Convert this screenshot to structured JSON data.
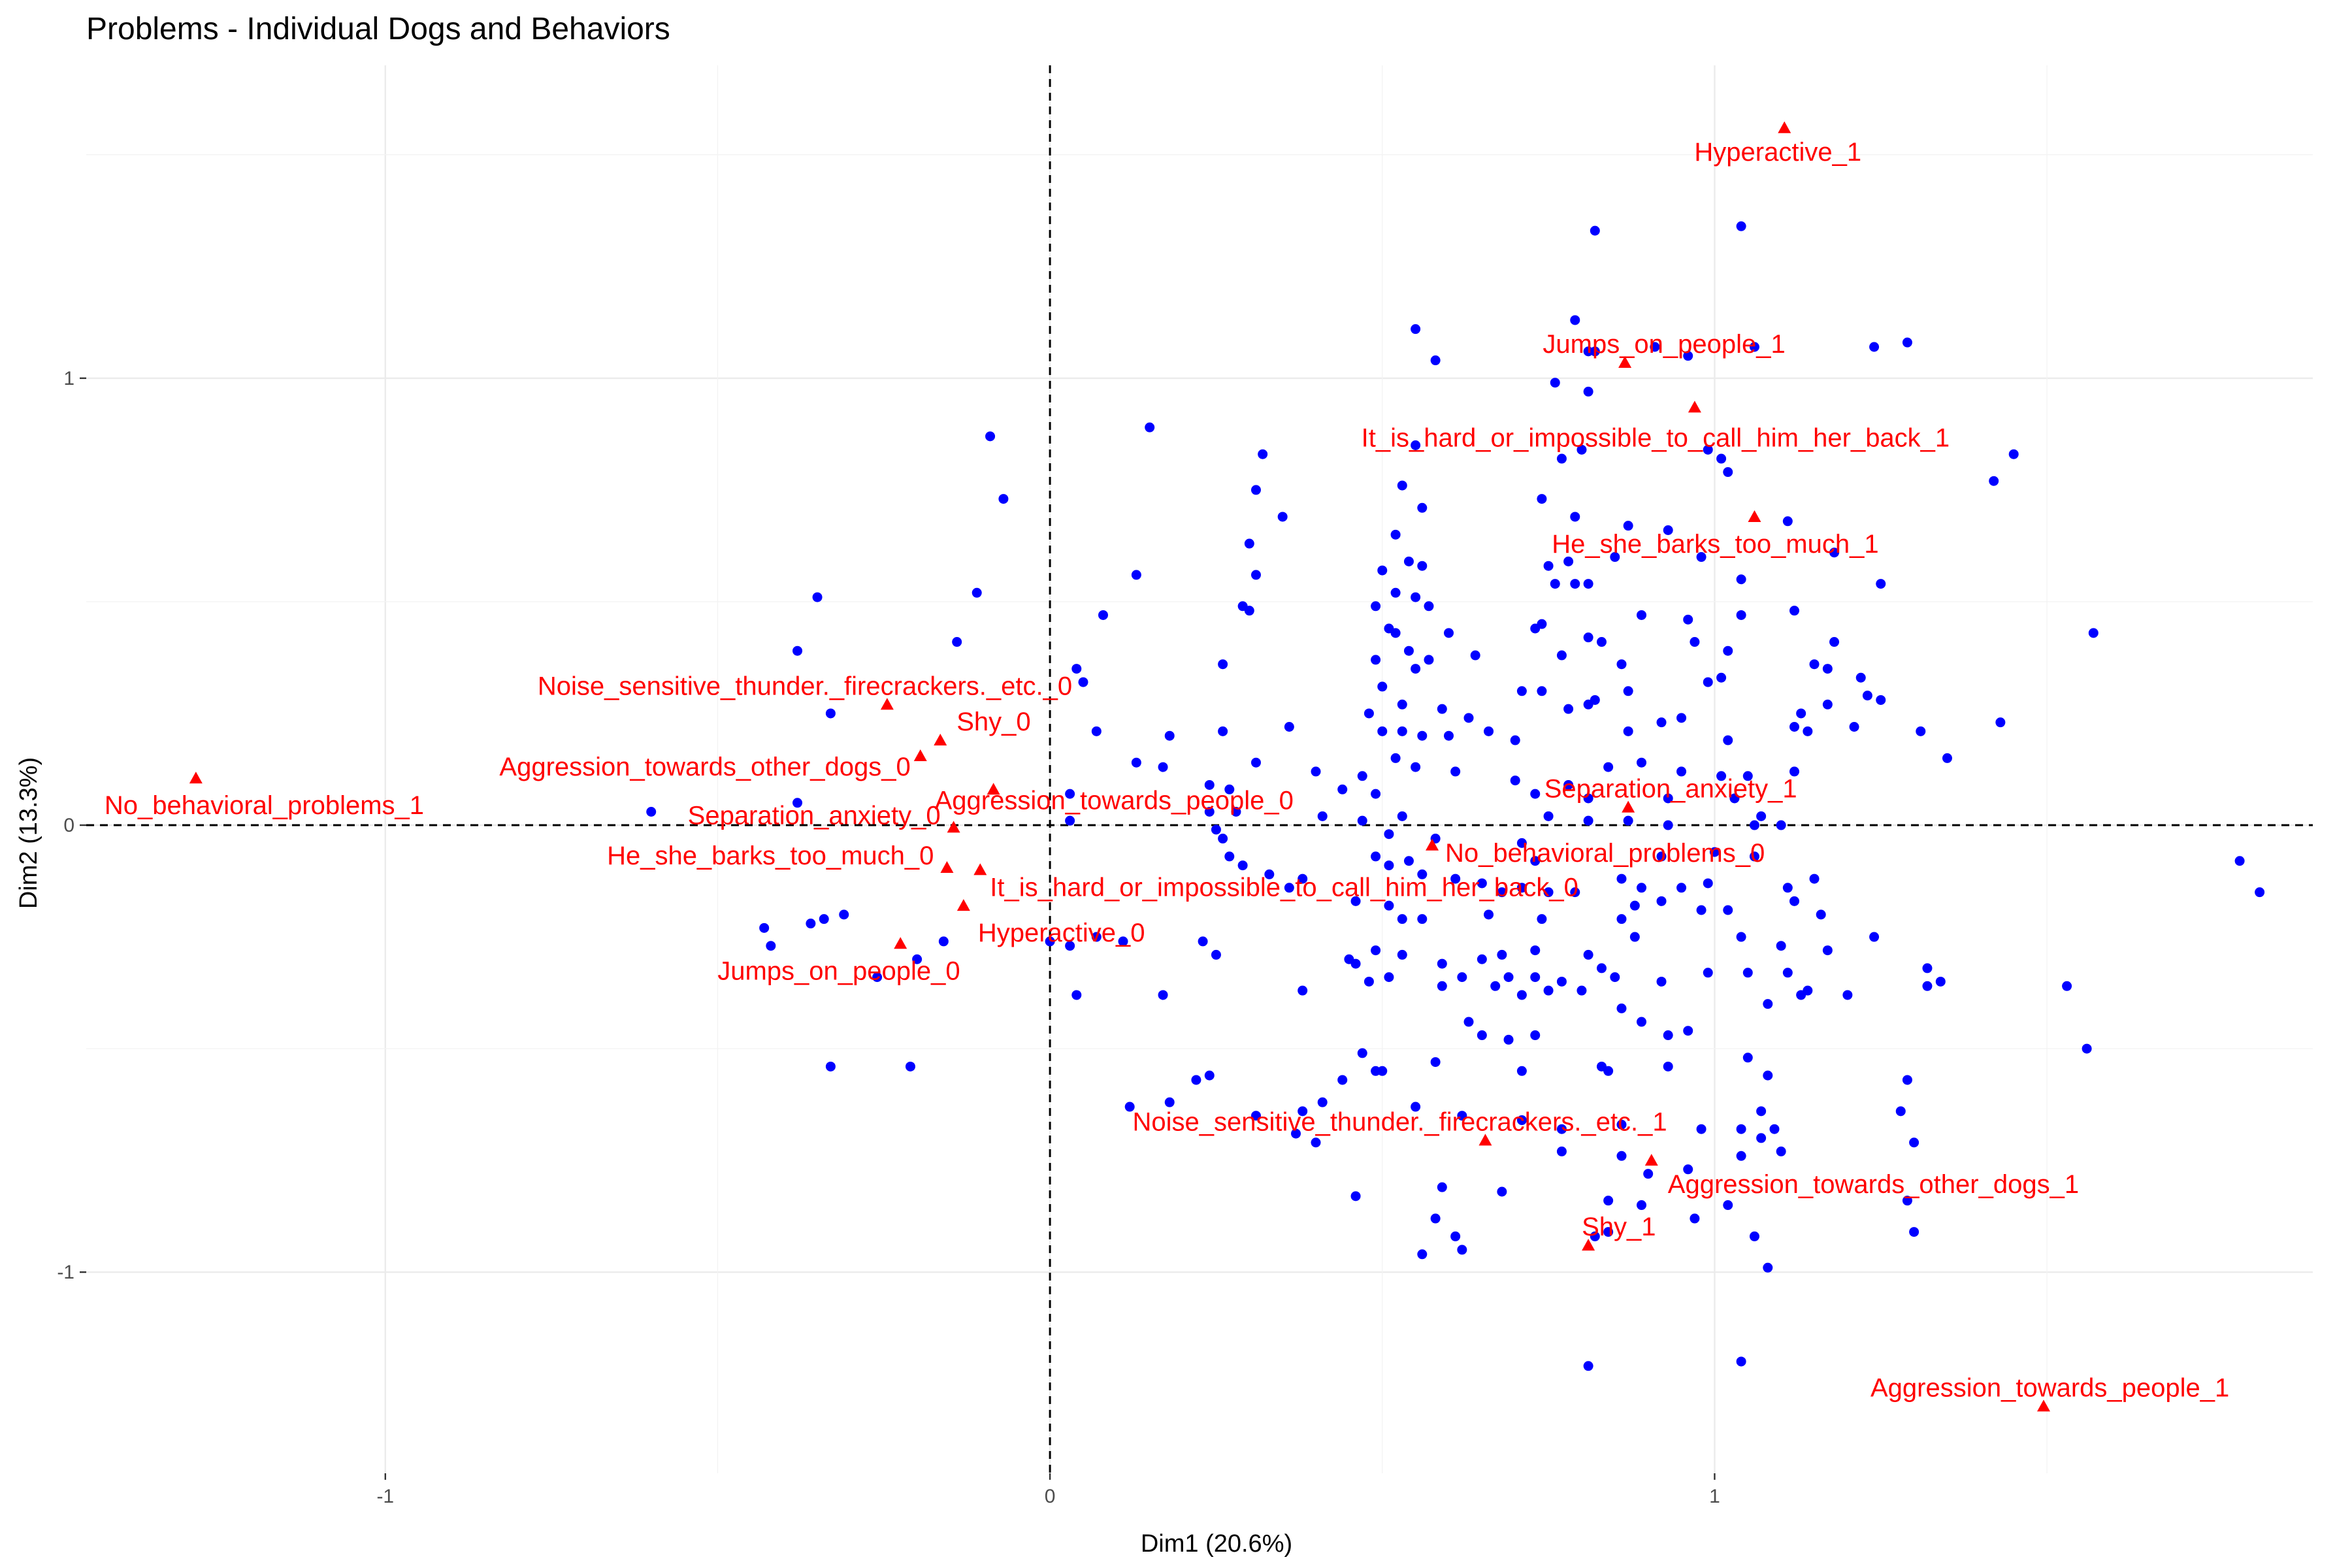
{
  "chart_data": {
    "type": "scatter",
    "title": "Problems - Individual Dogs and Behaviors",
    "xlabel": "Dim1 (20.6%)",
    "ylabel": "Dim2 (13.3%)",
    "xlim": [
      -1.45,
      1.9
    ],
    "ylim": [
      -1.45,
      1.7
    ],
    "x_ticks": [
      -1,
      0,
      1
    ],
    "y_ticks": [
      -1,
      0,
      1
    ],
    "x_tick_labels": [
      "-1",
      "0",
      "1"
    ],
    "y_tick_labels": [
      "-1",
      "0",
      "1"
    ],
    "grid": true,
    "reference_lines": {
      "x": 0,
      "y": 0,
      "style": "dashed"
    },
    "colors": {
      "individuals": "#0000ff",
      "variables": "#ff0000",
      "grid": "#ebebeb"
    },
    "variables": [
      {
        "label": "Hyperactive_1",
        "x": 1.105,
        "y": 1.56
      },
      {
        "label": "Jumps_on_people_1",
        "x": 0.865,
        "y": 1.035
      },
      {
        "label": "It_is_hard_or_impossible_to_call_him_her_back_1",
        "x": 0.97,
        "y": 0.935
      },
      {
        "label": "He_she_barks_too_much_1",
        "x": 1.06,
        "y": 0.69
      },
      {
        "label": "Noise_sensitive_thunder._firecrackers._etc._0",
        "x": -0.245,
        "y": 0.27
      },
      {
        "label": "Shy_0",
        "x": -0.165,
        "y": 0.19
      },
      {
        "label": "Aggression_towards_other_dogs_0",
        "x": -0.195,
        "y": 0.155
      },
      {
        "label": "Aggression_towards_people_0",
        "x": -0.085,
        "y": 0.08
      },
      {
        "label": "No_behavioral_problems_1",
        "x": -1.285,
        "y": 0.105
      },
      {
        "label": "Separation_anxiety_0",
        "x": -0.145,
        "y": -0.005
      },
      {
        "label": "He_she_barks_too_much_0",
        "x": -0.155,
        "y": -0.095
      },
      {
        "label": "It_is_hard_or_impossible_to_call_him_her_back_0",
        "x": -0.105,
        "y": -0.1
      },
      {
        "label": "Hyperactive_0",
        "x": -0.13,
        "y": -0.18
      },
      {
        "label": "Jumps_on_people_0",
        "x": -0.225,
        "y": -0.265
      },
      {
        "label": "Separation_anxiety_1",
        "x": 0.87,
        "y": 0.04
      },
      {
        "label": "No_behavioral_problems_0",
        "x": 0.575,
        "y": -0.045
      },
      {
        "label": "Noise_sensitive_thunder._firecrackers._etc._1",
        "x": 0.655,
        "y": -0.705
      },
      {
        "label": "Aggression_towards_other_dogs_1",
        "x": 0.905,
        "y": -0.75
      },
      {
        "label": "Shy_1",
        "x": 0.81,
        "y": -0.94
      },
      {
        "label": "Aggression_towards_people_1",
        "x": 1.495,
        "y": -1.3
      }
    ],
    "individuals": [
      [
        0.82,
        1.33
      ],
      [
        1.04,
        1.34
      ],
      [
        0.55,
        1.11
      ],
      [
        0.58,
        1.04
      ],
      [
        0.79,
        1.13
      ],
      [
        0.81,
        1.06
      ],
      [
        0.76,
        0.99
      ],
      [
        0.82,
        1.06
      ],
      [
        0.91,
        1.07
      ],
      [
        1.06,
        1.07
      ],
      [
        1.24,
        1.07
      ],
      [
        1.29,
        1.08
      ],
      [
        0.96,
        1.05
      ],
      [
        0.81,
        0.97
      ],
      [
        0.15,
        0.89
      ],
      [
        -0.09,
        0.87
      ],
      [
        0.32,
        0.83
      ],
      [
        0.55,
        0.85
      ],
      [
        0.77,
        0.82
      ],
      [
        0.8,
        0.84
      ],
      [
        0.99,
        0.84
      ],
      [
        1.01,
        0.82
      ],
      [
        1.02,
        0.79
      ],
      [
        1.45,
        0.83
      ],
      [
        1.42,
        0.77
      ],
      [
        0.31,
        0.75
      ],
      [
        0.53,
        0.76
      ],
      [
        -0.07,
        0.73
      ],
      [
        0.56,
        0.71
      ],
      [
        0.35,
        0.69
      ],
      [
        1.11,
        0.68
      ],
      [
        0.74,
        0.73
      ],
      [
        0.79,
        0.69
      ],
      [
        0.87,
        0.67
      ],
      [
        0.93,
        0.66
      ],
      [
        0.52,
        0.65
      ],
      [
        0.3,
        0.63
      ],
      [
        0.75,
        0.58
      ],
      [
        0.78,
        0.59
      ],
      [
        0.85,
        0.6
      ],
      [
        0.98,
        0.6
      ],
      [
        1.18,
        0.61
      ],
      [
        0.54,
        0.59
      ],
      [
        0.5,
        0.57
      ],
      [
        0.56,
        0.58
      ],
      [
        0.13,
        0.56
      ],
      [
        0.31,
        0.56
      ],
      [
        0.76,
        0.54
      ],
      [
        0.79,
        0.54
      ],
      [
        0.81,
        0.54
      ],
      [
        1.25,
        0.54
      ],
      [
        1.04,
        0.55
      ],
      [
        -0.35,
        0.51
      ],
      [
        -0.11,
        0.52
      ],
      [
        0.52,
        0.52
      ],
      [
        0.55,
        0.51
      ],
      [
        0.29,
        0.49
      ],
      [
        0.3,
        0.48
      ],
      [
        0.49,
        0.49
      ],
      [
        0.57,
        0.49
      ],
      [
        1.12,
        0.48
      ],
      [
        0.08,
        0.47
      ],
      [
        0.51,
        0.44
      ],
      [
        0.52,
        0.43
      ],
      [
        0.74,
        0.45
      ],
      [
        0.89,
        0.47
      ],
      [
        0.96,
        0.46
      ],
      [
        1.04,
        0.47
      ],
      [
        0.6,
        0.43
      ],
      [
        0.73,
        0.44
      ],
      [
        0.81,
        0.42
      ],
      [
        0.83,
        0.41
      ],
      [
        1.18,
        0.41
      ],
      [
        -0.38,
        0.39
      ],
      [
        -0.14,
        0.41
      ],
      [
        0.54,
        0.39
      ],
      [
        0.57,
        0.37
      ],
      [
        0.55,
        0.35
      ],
      [
        0.49,
        0.37
      ],
      [
        0.64,
        0.38
      ],
      [
        0.77,
        0.38
      ],
      [
        0.97,
        0.41
      ],
      [
        1.02,
        0.39
      ],
      [
        1.15,
        0.36
      ],
      [
        1.17,
        0.35
      ],
      [
        1.22,
        0.33
      ],
      [
        0.86,
        0.36
      ],
      [
        0.99,
        0.32
      ],
      [
        1.01,
        0.33
      ],
      [
        1.57,
        0.43
      ],
      [
        0.04,
        0.35
      ],
      [
        0.05,
        0.32
      ],
      [
        0.26,
        0.36
      ],
      [
        0.71,
        0.3
      ],
      [
        0.74,
        0.3
      ],
      [
        0.82,
        0.28
      ],
      [
        0.87,
        0.3
      ],
      [
        1.23,
        0.29
      ],
      [
        1.25,
        0.28
      ],
      [
        0.5,
        0.31
      ],
      [
        0.53,
        0.27
      ],
      [
        0.59,
        0.26
      ],
      [
        0.63,
        0.24
      ],
      [
        0.48,
        0.25
      ],
      [
        0.78,
        0.26
      ],
      [
        0.81,
        0.27
      ],
      [
        0.92,
        0.23
      ],
      [
        0.95,
        0.24
      ],
      [
        1.13,
        0.25
      ],
      [
        1.17,
        0.27
      ],
      [
        -0.33,
        0.25
      ],
      [
        0.07,
        0.21
      ],
      [
        0.18,
        0.2
      ],
      [
        0.26,
        0.21
      ],
      [
        0.36,
        0.22
      ],
      [
        0.5,
        0.21
      ],
      [
        0.53,
        0.21
      ],
      [
        0.56,
        0.2
      ],
      [
        0.6,
        0.2
      ],
      [
        0.66,
        0.21
      ],
      [
        0.7,
        0.19
      ],
      [
        0.87,
        0.21
      ],
      [
        1.02,
        0.19
      ],
      [
        1.12,
        0.22
      ],
      [
        1.14,
        0.21
      ],
      [
        1.21,
        0.22
      ],
      [
        1.31,
        0.21
      ],
      [
        1.35,
        0.15
      ],
      [
        1.43,
        0.23
      ],
      [
        0.13,
        0.14
      ],
      [
        0.17,
        0.13
      ],
      [
        0.31,
        0.14
      ],
      [
        0.4,
        0.12
      ],
      [
        0.47,
        0.11
      ],
      [
        0.52,
        0.15
      ],
      [
        0.55,
        0.13
      ],
      [
        0.61,
        0.12
      ],
      [
        0.7,
        0.1
      ],
      [
        0.84,
        0.13
      ],
      [
        0.89,
        0.14
      ],
      [
        0.95,
        0.12
      ],
      [
        1.01,
        0.11
      ],
      [
        1.05,
        0.11
      ],
      [
        1.12,
        0.12
      ],
      [
        0.24,
        0.09
      ],
      [
        0.27,
        0.08
      ],
      [
        0.44,
        0.08
      ],
      [
        0.49,
        0.07
      ],
      [
        0.73,
        0.07
      ],
      [
        0.78,
        0.09
      ],
      [
        0.81,
        0.06
      ],
      [
        0.93,
        0.06
      ],
      [
        1.03,
        0.06
      ],
      [
        1.07,
        0.02
      ],
      [
        0.03,
        0.07
      ],
      [
        0.24,
        0.03
      ],
      [
        0.28,
        0.03
      ],
      [
        0.41,
        0.02
      ],
      [
        0.47,
        0.01
      ],
      [
        0.53,
        0.02
      ],
      [
        0.75,
        0.02
      ],
      [
        0.81,
        0.01
      ],
      [
        0.87,
        0.01
      ],
      [
        0.93,
        0.0
      ],
      [
        1.06,
        0.0
      ],
      [
        1.1,
        0.0
      ],
      [
        -0.38,
        0.05
      ],
      [
        -0.6,
        0.03
      ],
      [
        0.03,
        0.01
      ],
      [
        0.25,
        -0.01
      ],
      [
        0.26,
        -0.03
      ],
      [
        0.51,
        -0.02
      ],
      [
        0.58,
        -0.03
      ],
      [
        0.71,
        -0.04
      ],
      [
        0.73,
        -0.08
      ],
      [
        0.92,
        -0.07
      ],
      [
        1.06,
        -0.07
      ],
      [
        1.0,
        -0.06
      ],
      [
        0.27,
        -0.07
      ],
      [
        0.29,
        -0.09
      ],
      [
        0.49,
        -0.07
      ],
      [
        0.51,
        -0.09
      ],
      [
        0.54,
        -0.08
      ],
      [
        0.56,
        -0.11
      ],
      [
        0.61,
        -0.12
      ],
      [
        0.65,
        -0.13
      ],
      [
        0.68,
        -0.15
      ],
      [
        0.71,
        -0.14
      ],
      [
        0.75,
        -0.15
      ],
      [
        0.79,
        -0.15
      ],
      [
        0.86,
        -0.12
      ],
      [
        0.89,
        -0.14
      ],
      [
        0.95,
        -0.14
      ],
      [
        0.99,
        -0.13
      ],
      [
        1.11,
        -0.14
      ],
      [
        1.15,
        -0.12
      ],
      [
        1.02,
        -0.19
      ],
      [
        1.79,
        -0.08
      ],
      [
        1.82,
        -0.15
      ],
      [
        0.33,
        -0.11
      ],
      [
        0.38,
        -0.12
      ],
      [
        0.36,
        -0.14
      ],
      [
        0.46,
        -0.17
      ],
      [
        0.51,
        -0.18
      ],
      [
        0.53,
        -0.21
      ],
      [
        0.56,
        -0.21
      ],
      [
        0.66,
        -0.2
      ],
      [
        0.74,
        -0.21
      ],
      [
        0.86,
        -0.21
      ],
      [
        0.88,
        -0.18
      ],
      [
        0.92,
        -0.17
      ],
      [
        0.98,
        -0.19
      ],
      [
        1.12,
        -0.17
      ],
      [
        1.16,
        -0.2
      ],
      [
        0.03,
        -0.27
      ],
      [
        0.0,
        -0.26
      ],
      [
        0.23,
        -0.26
      ],
      [
        0.07,
        -0.25
      ],
      [
        0.11,
        -0.26
      ],
      [
        0.25,
        -0.29
      ],
      [
        0.45,
        -0.3
      ],
      [
        0.49,
        -0.28
      ],
      [
        0.53,
        -0.29
      ],
      [
        0.59,
        -0.31
      ],
      [
        0.65,
        -0.3
      ],
      [
        0.68,
        -0.29
      ],
      [
        0.73,
        -0.28
      ],
      [
        0.81,
        -0.29
      ],
      [
        0.88,
        -0.25
      ],
      [
        1.04,
        -0.25
      ],
      [
        1.1,
        -0.27
      ],
      [
        1.11,
        -0.33
      ],
      [
        1.14,
        -0.37
      ],
      [
        1.17,
        -0.28
      ],
      [
        1.24,
        -0.25
      ],
      [
        0.46,
        -0.31
      ],
      [
        0.48,
        -0.35
      ],
      [
        0.51,
        -0.34
      ],
      [
        0.62,
        -0.34
      ],
      [
        0.67,
        -0.36
      ],
      [
        0.69,
        -0.34
      ],
      [
        0.73,
        -0.34
      ],
      [
        0.77,
        -0.35
      ],
      [
        0.83,
        -0.32
      ],
      [
        0.85,
        -0.34
      ],
      [
        0.92,
        -0.35
      ],
      [
        0.99,
        -0.33
      ],
      [
        1.05,
        -0.33
      ],
      [
        1.08,
        -0.4
      ],
      [
        1.13,
        -0.38
      ],
      [
        1.2,
        -0.38
      ],
      [
        1.32,
        -0.32
      ],
      [
        1.32,
        -0.36
      ],
      [
        1.34,
        -0.35
      ],
      [
        1.53,
        -0.36
      ],
      [
        0.04,
        -0.38
      ],
      [
        0.17,
        -0.38
      ],
      [
        0.38,
        -0.37
      ],
      [
        0.59,
        -0.36
      ],
      [
        0.71,
        -0.38
      ],
      [
        0.75,
        -0.37
      ],
      [
        0.8,
        -0.37
      ],
      [
        0.86,
        -0.41
      ],
      [
        0.89,
        -0.44
      ],
      [
        0.93,
        -0.47
      ],
      [
        0.96,
        -0.46
      ],
      [
        0.63,
        -0.44
      ],
      [
        0.65,
        -0.47
      ],
      [
        0.69,
        -0.48
      ],
      [
        0.73,
        -0.47
      ],
      [
        1.05,
        -0.52
      ],
      [
        1.56,
        -0.5
      ],
      [
        0.47,
        -0.51
      ],
      [
        0.49,
        -0.55
      ],
      [
        0.58,
        -0.53
      ],
      [
        0.71,
        -0.55
      ],
      [
        0.83,
        -0.54
      ],
      [
        0.84,
        -0.55
      ],
      [
        0.93,
        -0.54
      ],
      [
        -0.33,
        -0.54
      ],
      [
        -0.21,
        -0.54
      ],
      [
        0.22,
        -0.57
      ],
      [
        0.24,
        -0.56
      ],
      [
        0.44,
        -0.57
      ],
      [
        0.5,
        -0.55
      ],
      [
        1.08,
        -0.56
      ],
      [
        1.07,
        -0.64
      ],
      [
        1.29,
        -0.57
      ],
      [
        -0.43,
        -0.23
      ],
      [
        -0.42,
        -0.27
      ],
      [
        -0.36,
        -0.22
      ],
      [
        -0.34,
        -0.21
      ],
      [
        -0.31,
        -0.2
      ],
      [
        -0.26,
        -0.34
      ],
      [
        -0.2,
        -0.3
      ],
      [
        -0.16,
        -0.26
      ],
      [
        0.12,
        -0.63
      ],
      [
        0.18,
        -0.62
      ],
      [
        0.31,
        -0.65
      ],
      [
        0.38,
        -0.64
      ],
      [
        0.41,
        -0.62
      ],
      [
        0.55,
        -0.63
      ],
      [
        0.62,
        -0.65
      ],
      [
        0.71,
        -0.66
      ],
      [
        0.77,
        -0.68
      ],
      [
        0.86,
        -0.67
      ],
      [
        0.98,
        -0.68
      ],
      [
        1.04,
        -0.68
      ],
      [
        1.07,
        -0.7
      ],
      [
        1.09,
        -0.68
      ],
      [
        1.28,
        -0.64
      ],
      [
        1.3,
        -0.71
      ],
      [
        0.37,
        -0.69
      ],
      [
        0.4,
        -0.71
      ],
      [
        0.77,
        -0.73
      ],
      [
        0.86,
        -0.74
      ],
      [
        0.96,
        -0.77
      ],
      [
        1.04,
        -0.74
      ],
      [
        1.1,
        -0.73
      ],
      [
        0.9,
        -0.78
      ],
      [
        0.46,
        -0.83
      ],
      [
        0.59,
        -0.81
      ],
      [
        0.68,
        -0.82
      ],
      [
        0.84,
        -0.84
      ],
      [
        0.89,
        -0.85
      ],
      [
        1.02,
        -0.85
      ],
      [
        1.29,
        -0.84
      ],
      [
        1.3,
        -0.91
      ],
      [
        0.58,
        -0.88
      ],
      [
        0.61,
        -0.92
      ],
      [
        0.56,
        -0.96
      ],
      [
        0.62,
        -0.95
      ],
      [
        0.82,
        -0.92
      ],
      [
        0.84,
        -0.91
      ],
      [
        0.97,
        -0.88
      ],
      [
        1.06,
        -0.92
      ],
      [
        1.08,
        -0.99
      ],
      [
        0.81,
        -1.21
      ],
      [
        1.04,
        -1.2
      ]
    ]
  }
}
